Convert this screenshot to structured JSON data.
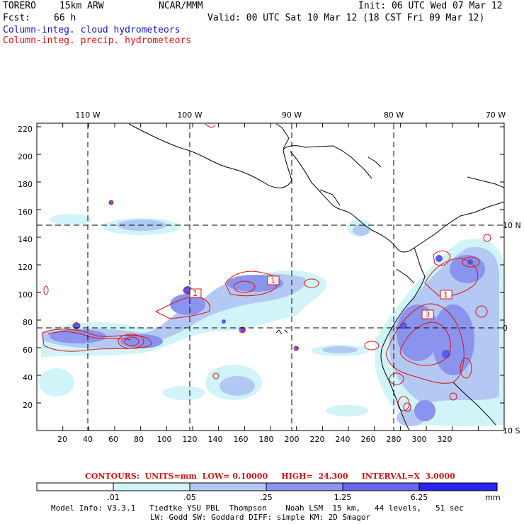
{
  "header": {
    "model": "TORERO",
    "resolution": "15km ARW",
    "center": "NCAR/MMM",
    "init": "Init: 06 UTC Wed 07 Mar 12",
    "fcst_label": "Fcst:",
    "fcst_value": "66 h",
    "valid": "Valid: 00 UTC Sat 10 Mar 12 (18 CST Fri 09 Mar 12)",
    "field1": "Column-integ. cloud hydrometeors",
    "field2": "Column-integ. precip. hydrometeors",
    "field1_color": "#1010d0",
    "field2_color": "#e01010"
  },
  "map": {
    "top_lon_labels": [
      "110 W",
      "100 W",
      "90 W",
      "80 W",
      "70 W"
    ],
    "right_lat_labels": [
      "10 N",
      "0",
      "10 S"
    ],
    "y_ticks": [
      "220",
      "200",
      "180",
      "160",
      "140",
      "120",
      "100",
      "80",
      "60",
      "40",
      "20"
    ],
    "x_ticks": [
      "20",
      "40",
      "60",
      "80",
      "100",
      "120",
      "140",
      "160",
      "180",
      "200",
      "220",
      "240",
      "260",
      "280",
      "300",
      "320"
    ],
    "contour_labels": [
      "1",
      "1",
      "1",
      "3"
    ]
  },
  "contours_info": "CONTOURS:  UNITS=mm  LOW= 0.10000     HIGH=  24.300     INTERVAL=X  3.0000",
  "colorbar": {
    "labels": [
      ".01",
      ".05",
      ".25",
      "1.25",
      "6.25"
    ],
    "unit": "mm",
    "colors": [
      "#ffffff",
      "#d0f4f8",
      "#b4c8f4",
      "#8a94ee",
      "#6a66f0",
      "#3c38f0",
      "#2a24f4"
    ]
  },
  "footer": {
    "line1": "Model Info: V3.3.1   Tiedtke YSU PBL  Thompson    Noah LSM  15 km,   44 levels,   51 sec",
    "line2": "LW: Godd SW: Goddard DIFF: simple KM: 2D Smagor"
  }
}
